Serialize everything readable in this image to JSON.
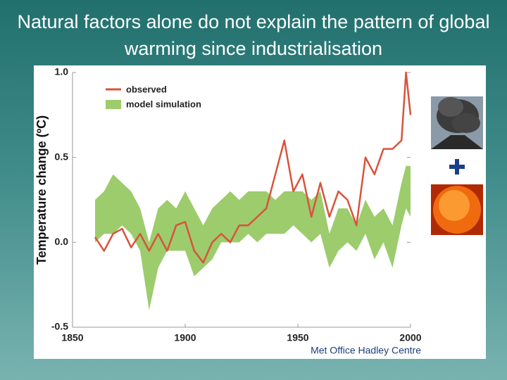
{
  "chart_data": {
    "type": "line",
    "title": "Natural factors alone do not explain the pattern of global warming since industrialisation",
    "ylabel": "Temperature change (ºC)",
    "credit": "Met Office Hadley Centre",
    "x": [
      1860,
      1864,
      1868,
      1872,
      1876,
      1880,
      1884,
      1888,
      1892,
      1896,
      1900,
      1904,
      1908,
      1912,
      1916,
      1920,
      1924,
      1928,
      1932,
      1936,
      1940,
      1944,
      1948,
      1952,
      1956,
      1960,
      1964,
      1968,
      1972,
      1976,
      1980,
      1984,
      1988,
      1992,
      1996,
      1998,
      2000
    ],
    "series": [
      {
        "name": "observed",
        "color": "#d9533c",
        "values": [
          0.03,
          -0.05,
          0.05,
          0.08,
          -0.03,
          0.05,
          -0.05,
          0.05,
          -0.05,
          0.1,
          0.12,
          -0.05,
          -0.12,
          0.0,
          0.05,
          0.0,
          0.1,
          0.1,
          0.15,
          0.2,
          0.4,
          0.6,
          0.3,
          0.4,
          0.15,
          0.35,
          0.15,
          0.3,
          0.25,
          0.1,
          0.5,
          0.4,
          0.55,
          0.55,
          0.6,
          1.0,
          0.75
        ]
      },
      {
        "name": "model simulation",
        "color": "#9ccc6c",
        "lower": [
          0.0,
          0.05,
          0.05,
          0.1,
          0.05,
          -0.05,
          -0.4,
          -0.15,
          -0.05,
          -0.05,
          -0.05,
          -0.2,
          -0.15,
          -0.1,
          0.0,
          0.0,
          0.0,
          0.05,
          0.0,
          0.05,
          0.05,
          0.05,
          0.1,
          0.05,
          0.0,
          0.05,
          -0.15,
          -0.05,
          0.0,
          -0.05,
          0.05,
          -0.1,
          0.0,
          -0.15,
          0.1,
          0.2,
          0.15
        ],
        "upper": [
          0.25,
          0.3,
          0.4,
          0.35,
          0.3,
          0.2,
          0.0,
          0.2,
          0.25,
          0.2,
          0.3,
          0.2,
          0.1,
          0.2,
          0.25,
          0.3,
          0.25,
          0.3,
          0.3,
          0.3,
          0.25,
          0.3,
          0.3,
          0.3,
          0.25,
          0.3,
          0.05,
          0.2,
          0.2,
          0.1,
          0.25,
          0.15,
          0.2,
          0.1,
          0.35,
          0.45,
          0.45
        ]
      }
    ],
    "xlim": [
      1850,
      2000
    ],
    "xticks": [
      1850,
      1900,
      1950,
      2000
    ],
    "ylim": [
      -0.5,
      1.0
    ],
    "yticks": [
      -0.5,
      {
        "value": 0,
        "label": "0.0"
      },
      0.5,
      {
        "value": 1,
        "label": "1.0"
      }
    ]
  }
}
